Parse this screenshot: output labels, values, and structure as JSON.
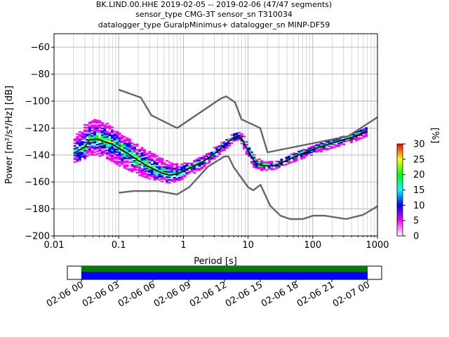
{
  "header": {
    "title_lines": [
      "BK.LIND.00.HHE   2019-02-05 -- 2019-02-06  (47/47 segments)",
      "sensor_type CMG-3T sensor_sn T310034",
      "datalogger_type GuralpMinimus+ datalogger_sn MINP-DF59"
    ]
  },
  "chart_data": {
    "type": "heatmap",
    "xlabel": "Period [s]",
    "ylabel": "Power [m²/s⁴/Hz] [dB]",
    "x_scale": "log",
    "xlim": [
      0.01,
      1000
    ],
    "ylim": [
      -200,
      -50
    ],
    "x_ticks": [
      {
        "value": 0.01,
        "label": "0.01"
      },
      {
        "value": 0.1,
        "label": "0.1"
      },
      {
        "value": 1,
        "label": "1"
      },
      {
        "value": 10,
        "label": "10"
      },
      {
        "value": 100,
        "label": "100"
      },
      {
        "value": 1000,
        "label": "1000"
      }
    ],
    "y_ticks": [
      {
        "value": -60,
        "label": "−60"
      },
      {
        "value": -80,
        "label": "−80"
      },
      {
        "value": -100,
        "label": "−100"
      },
      {
        "value": -120,
        "label": "−120"
      },
      {
        "value": -140,
        "label": "−140"
      },
      {
        "value": -160,
        "label": "−160"
      },
      {
        "value": -180,
        "label": "−180"
      },
      {
        "value": -200,
        "label": "−200"
      }
    ],
    "grid": true,
    "colorbar": {
      "label": "[%]",
      "range": [
        0,
        30
      ],
      "ticks": [
        {
          "value": 0,
          "label": "0"
        },
        {
          "value": 5,
          "label": "5"
        },
        {
          "value": 10,
          "label": "10"
        },
        {
          "value": 15,
          "label": "15"
        },
        {
          "value": 20,
          "label": "20"
        },
        {
          "value": 25,
          "label": "25"
        },
        {
          "value": 30,
          "label": "30"
        }
      ],
      "colors": [
        "#ffffff",
        "#ff00ff",
        "#0000ff",
        "#00ffff",
        "#00ff00",
        "#ffff00",
        "#ff0000"
      ]
    },
    "series": [
      {
        "role": "noise-model-high",
        "color": "#666666",
        "x": [
          0.1,
          0.22,
          0.32,
          0.8,
          3.8,
          4.6,
          6.3,
          7.9,
          15.4,
          20,
          354.8,
          1000
        ],
        "y": [
          -91.5,
          -97.4,
          -110.5,
          -120,
          -98,
          -96.5,
          -101,
          -113.5,
          -120,
          -138,
          -126,
          -112
        ]
      },
      {
        "role": "noise-model-low",
        "color": "#666666",
        "x": [
          0.1,
          0.17,
          0.4,
          0.8,
          1.24,
          2.4,
          4.3,
          5,
          6,
          10,
          12,
          15.6,
          21.9,
          31.6,
          45,
          70,
          101,
          154,
          328,
          600,
          1000
        ],
        "y": [
          -168,
          -166.7,
          -166.7,
          -169.2,
          -163.7,
          -148.6,
          -141.1,
          -141.1,
          -149,
          -163.8,
          -166.2,
          -162.1,
          -177.5,
          -185,
          -187.5,
          -187.5,
          -185,
          -185,
          -187.5,
          -184.4,
          -178
        ]
      },
      {
        "role": "mode",
        "color": "#000000",
        "x": [
          0.02,
          0.025,
          0.03,
          0.035,
          0.045,
          0.06,
          0.08,
          0.1,
          0.15,
          0.2,
          0.3,
          0.45,
          0.6,
          0.8,
          1.2,
          2,
          3,
          4,
          5,
          6,
          7,
          8,
          10,
          13,
          17,
          25,
          40,
          60,
          100,
          200,
          400,
          700
        ],
        "y": [
          -139,
          -136,
          -134,
          -129,
          -128,
          -130,
          -132,
          -135,
          -140,
          -144,
          -149,
          -153,
          -155,
          -154,
          -150,
          -145,
          -139,
          -134,
          -130,
          -127,
          -126,
          -128,
          -137,
          -146,
          -148,
          -148,
          -144,
          -140,
          -136,
          -131,
          -127,
          -122
        ]
      }
    ],
    "psd_bands": [
      {
        "x": [
          0.02,
          0.03,
          0.04,
          0.06,
          0.08,
          0.1,
          0.15,
          0.2,
          0.3,
          0.45,
          0.6,
          0.8,
          1.2,
          2,
          3,
          4,
          5,
          6,
          7,
          8,
          10,
          13,
          17,
          25,
          40,
          60,
          100,
          200,
          400,
          700
        ]
      },
      {
        "upper": [
          -128,
          -117,
          -114,
          -115,
          -119,
          -123,
          -129,
          -133,
          -138,
          -142,
          -145,
          -147,
          -146,
          -141,
          -135,
          -131,
          -127,
          -124,
          -123,
          -124,
          -131,
          -142,
          -145,
          -145,
          -141,
          -137,
          -133,
          -129,
          -124,
          -119
        ]
      },
      {
        "lower": [
          -146,
          -143,
          -140,
          -142,
          -145,
          -148,
          -152,
          -155,
          -158,
          -160,
          -161,
          -160,
          -156,
          -150,
          -143,
          -138,
          -134,
          -130,
          -129,
          -132,
          -142,
          -151,
          -152,
          -151,
          -147,
          -144,
          -140,
          -135,
          -131,
          -126
        ]
      }
    ]
  },
  "timeline": {
    "ticks": [
      "02-06 00",
      "02-06 03",
      "02-06 06",
      "02-06 09",
      "02-06 12",
      "02-06 15",
      "02-06 18",
      "02-06 21",
      "02-07 00"
    ],
    "bands": [
      {
        "role": "data-coverage",
        "color": "#0000ff"
      },
      {
        "role": "gaps-overlaps",
        "color": "#008000"
      }
    ]
  }
}
